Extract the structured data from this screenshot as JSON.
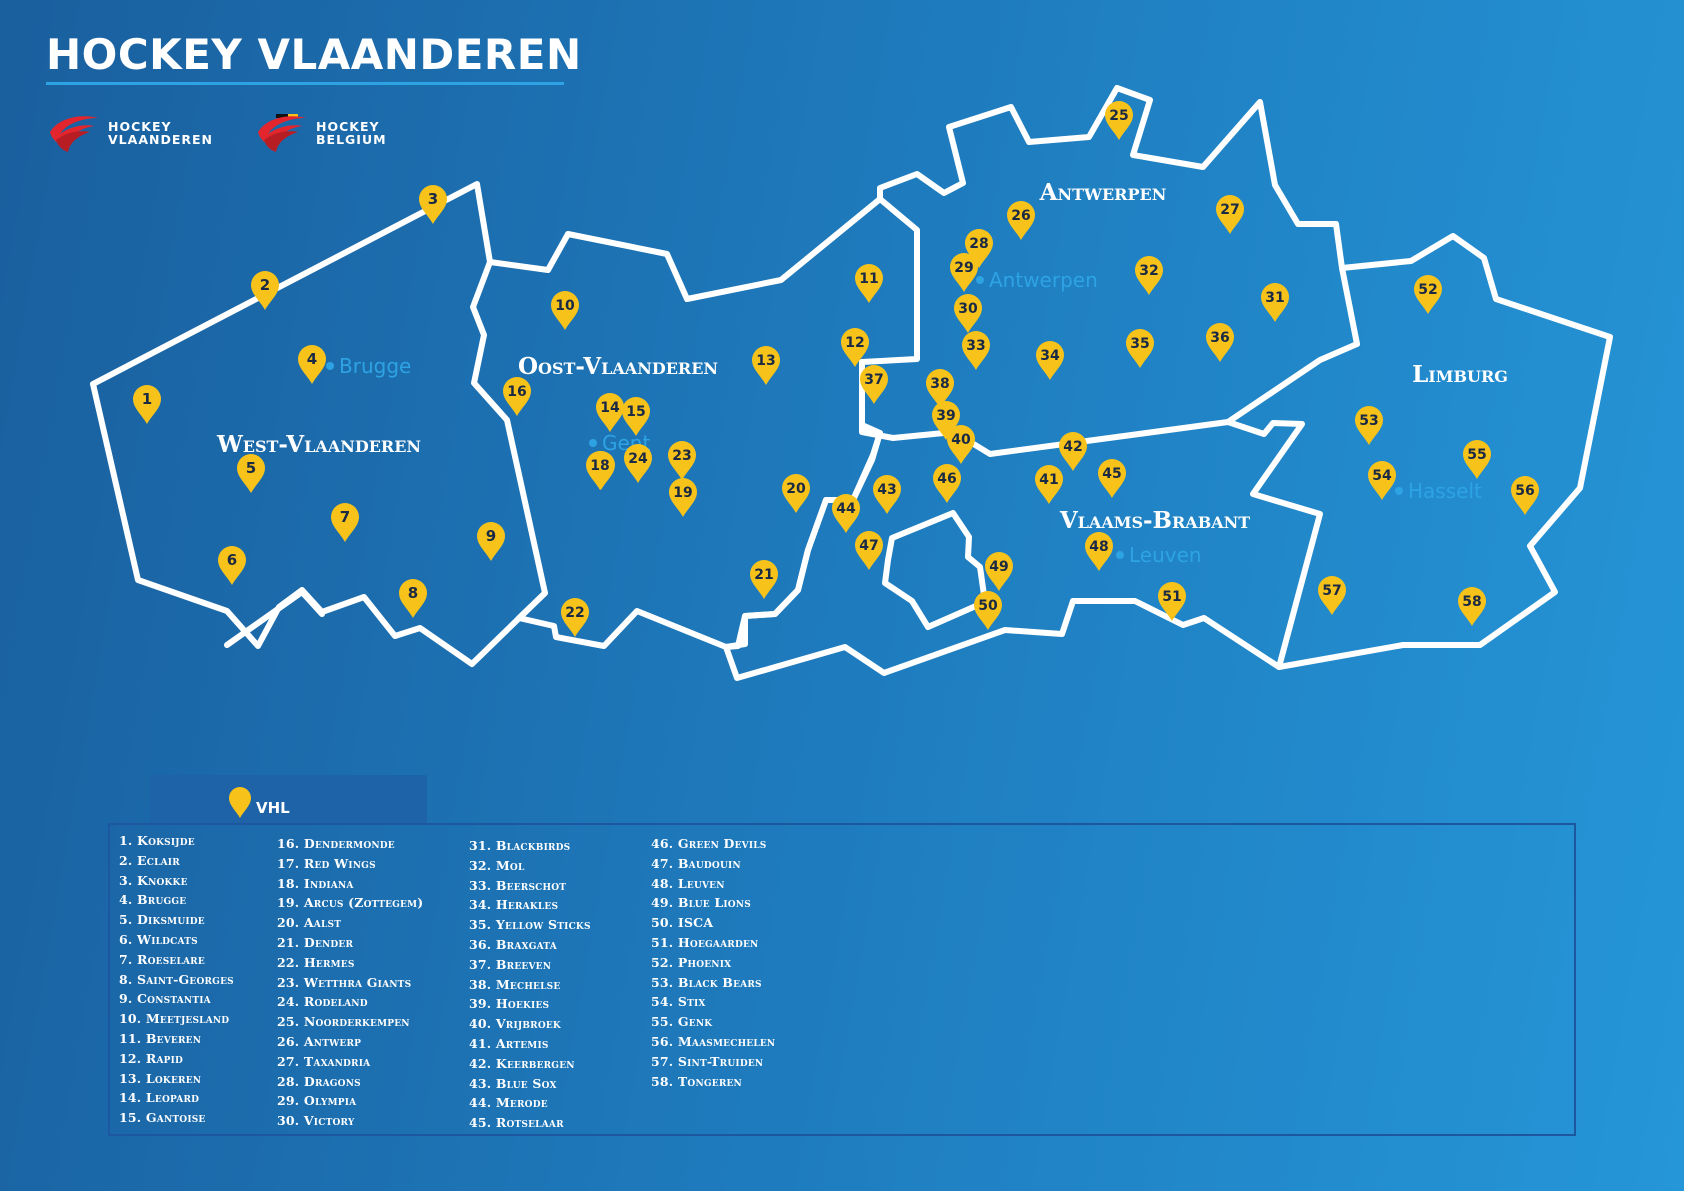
{
  "header": {
    "title": "HOCKEY VLAANDEREN"
  },
  "logos": [
    {
      "name": "hockey-vlaanderen-logo",
      "text": "HOCKEY\nVLAANDEREN"
    },
    {
      "name": "hockey-belgium-logo",
      "text": "HOCKEY\nBELGIUM"
    }
  ],
  "colors": {
    "background": "#1e7bbd",
    "pin": "#f7c21a",
    "border": "#ffffff",
    "city": "#2ea3e4"
  },
  "provinces": [
    {
      "id": "west-vlaanderen",
      "label": "West-Vlaanderen"
    },
    {
      "id": "oost-vlaanderen",
      "label": "Oost-Vlaanderen"
    },
    {
      "id": "antwerpen",
      "label": "Antwerpen"
    },
    {
      "id": "vlaams-brabant",
      "label": "Vlaams-Brabant"
    },
    {
      "id": "limburg",
      "label": "Limburg"
    }
  ],
  "cities": [
    "Brugge",
    "Gent",
    "Antwerpen",
    "Leuven",
    "Hasselt"
  ],
  "legend": {
    "tab_label": "VHL",
    "clubs": [
      "1. Koksijde",
      "2. Eclair",
      "3. Knokke",
      "4. Brugge",
      "5. Diksmuide",
      "6. Wildcats",
      "7. Roeselare",
      "8. Saint-Georges",
      "9. Constantia",
      "10. Meetjesland",
      "11. Beveren",
      "12. Rapid",
      "13. Lokeren",
      "14. Leopard",
      "15. Gantoise",
      "16. Dendermonde",
      "17. Red Wings",
      "18. Indiana",
      "19. Arcus (Zottegem)",
      "20. Aalst",
      "21. Dender",
      "22. Hermes",
      "23. Wetthra Giants",
      "24. Rodeland",
      "25. Noorderkempen",
      "26. Antwerp",
      "27. Taxandria",
      "28. Dragons",
      "29. Olympia",
      "30. Victory",
      "31. Blackbirds",
      "32. Mol",
      "33. Beerschot",
      "34. Herakles",
      "35. Yellow Sticks",
      "36. Braxgata",
      "37. Breeven",
      "38. Mechelse",
      "39. Hoekies",
      "40. Vrijbroek",
      "41. Artemis",
      "42. Keerbergen",
      "43. Blue Sox",
      "44. Merode",
      "45. Rotselaar",
      "46. Green Devils",
      "47. Baudouin",
      "48. Leuven",
      "49. Blue Lions",
      "50. ISCA",
      "51. Hoegaarden",
      "52. Phoenix",
      "53. Black Bears",
      "54. Stix",
      "55. Genk",
      "56. Maasmechelen",
      "57. Sint-Truiden",
      "58. Tongeren"
    ]
  },
  "pin_numbers": [
    "1",
    "2",
    "3",
    "4",
    "5",
    "6",
    "7",
    "8",
    "9",
    "10",
    "11",
    "12",
    "13",
    "14",
    "15",
    "16",
    "17",
    "18",
    "19",
    "20",
    "21",
    "22",
    "23",
    "24",
    "25",
    "26",
    "27",
    "28",
    "29",
    "30",
    "31",
    "32",
    "33",
    "34",
    "35",
    "36",
    "37",
    "38",
    "39",
    "40",
    "41",
    "42",
    "43",
    "44",
    "45",
    "46",
    "47",
    "48",
    "49",
    "50",
    "51",
    "52",
    "53",
    "54",
    "55",
    "56",
    "57",
    "58"
  ]
}
